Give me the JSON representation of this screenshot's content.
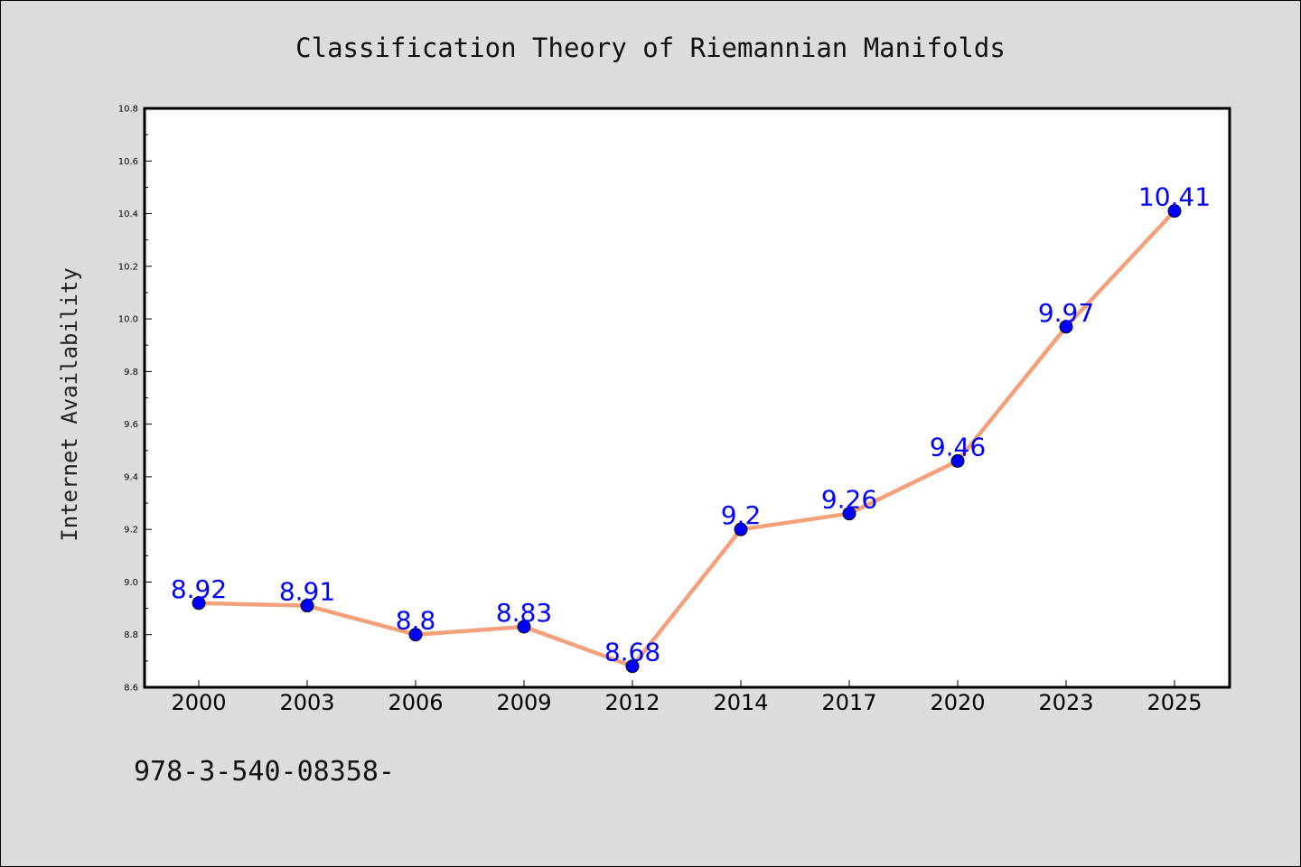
{
  "chart_data": {
    "type": "line",
    "title": "Classification Theory of Riemannian Manifolds",
    "xlabel": "",
    "ylabel": "Internet Availability",
    "categories": [
      "2000",
      "2003",
      "2006",
      "2009",
      "2012",
      "2014",
      "2017",
      "2020",
      "2023",
      "2025"
    ],
    "series": [
      {
        "values": [
          8.92,
          8.91,
          8.8,
          8.83,
          8.68,
          9.2,
          9.26,
          9.46,
          9.97,
          10.41
        ],
        "labels": [
          "8.92",
          "8.91",
          "8.8",
          "8.83",
          "8.68",
          "9.2",
          "9.26",
          "9.46",
          "9.97",
          "10.41"
        ]
      }
    ],
    "ylim": [
      8.6,
      10.8
    ],
    "yticks": [
      "8.6",
      "8.8",
      "9.0",
      "9.2",
      "9.4",
      "9.6",
      "9.8",
      "10.0",
      "10.2",
      "10.4",
      "10.6",
      "10.8"
    ],
    "grid": false,
    "legend": "none",
    "colors": {
      "line": "#f4a07a",
      "marker": "#0000ff",
      "label": "#0000ff",
      "plot_background": "#ffffff",
      "figure_background": "#dcdcdc"
    }
  },
  "footer": {
    "isbn": "978-3-540-08358-"
  }
}
